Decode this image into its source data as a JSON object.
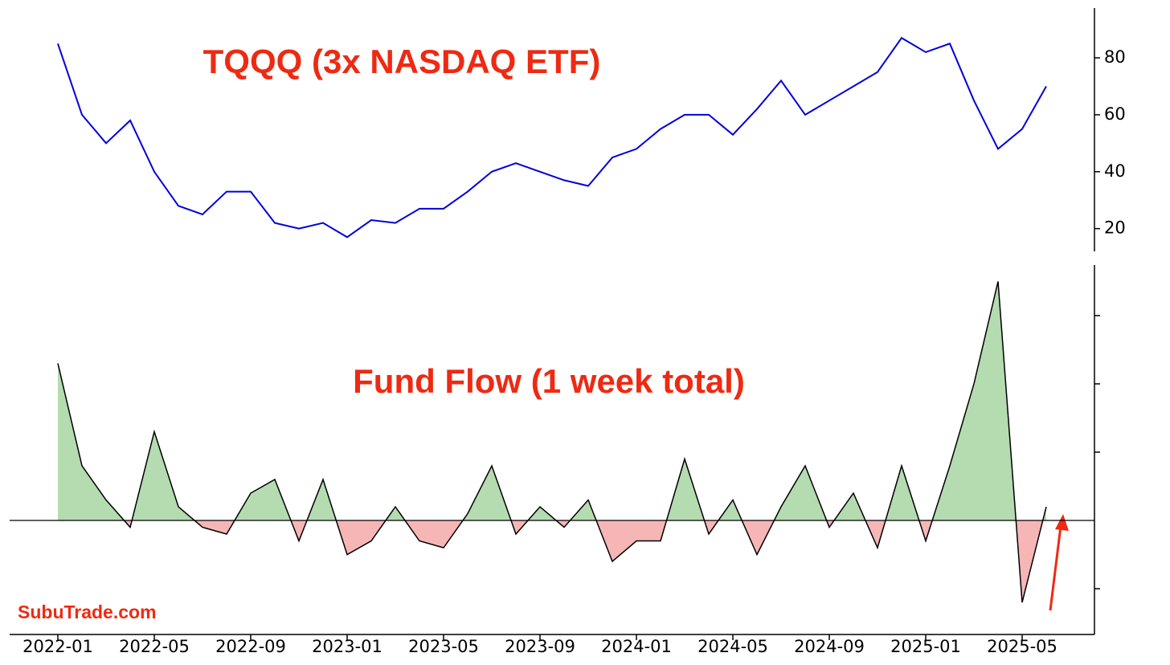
{
  "chart_data": [
    {
      "type": "line",
      "title": "TQQQ (3x NASDAQ ETF)",
      "x": [
        "2022-01",
        "2022-02",
        "2022-03",
        "2022-04",
        "2022-05",
        "2022-06",
        "2022-07",
        "2022-08",
        "2022-09",
        "2022-10",
        "2022-11",
        "2022-12",
        "2023-01",
        "2023-02",
        "2023-03",
        "2023-04",
        "2023-05",
        "2023-06",
        "2023-07",
        "2023-08",
        "2023-09",
        "2023-10",
        "2023-11",
        "2023-12",
        "2024-01",
        "2024-02",
        "2024-03",
        "2024-04",
        "2024-05",
        "2024-06",
        "2024-07",
        "2024-08",
        "2024-09",
        "2024-10",
        "2024-11",
        "2024-12",
        "2025-01",
        "2025-02",
        "2025-03",
        "2025-04",
        "2025-05",
        "2025-06"
      ],
      "series": [
        {
          "color": "#0000dd",
          "values": [
            85,
            60,
            50,
            58,
            40,
            28,
            25,
            33,
            33,
            22,
            20,
            22,
            17,
            23,
            22,
            27,
            27,
            33,
            40,
            43,
            40,
            37,
            35,
            45,
            48,
            55,
            60,
            60,
            53,
            62,
            72,
            60,
            65,
            70,
            75,
            87,
            82,
            85,
            65,
            48,
            55,
            70
          ]
        }
      ],
      "xlim": [
        "2021-11",
        "2025-08"
      ],
      "ylim": [
        12,
        97.5
      ],
      "yticks": [
        20,
        40,
        60,
        80
      ]
    },
    {
      "type": "area",
      "title": "Fund Flow (1 week total)",
      "x": [
        "2022-01",
        "2022-02",
        "2022-03",
        "2022-04",
        "2022-05",
        "2022-06",
        "2022-07",
        "2022-08",
        "2022-09",
        "2022-10",
        "2022-11",
        "2022-12",
        "2023-01",
        "2023-02",
        "2023-03",
        "2023-04",
        "2023-05",
        "2023-06",
        "2023-07",
        "2023-08",
        "2023-09",
        "2023-10",
        "2023-11",
        "2023-12",
        "2024-01",
        "2024-02",
        "2024-03",
        "2024-04",
        "2024-05",
        "2024-06",
        "2024-07",
        "2024-08",
        "2024-09",
        "2024-10",
        "2024-11",
        "2024-12",
        "2025-01",
        "2025-02",
        "2025-03",
        "2025-04",
        "2025-05",
        "2025-06"
      ],
      "series": [
        {
          "color": "#000000",
          "values": [
            2.3,
            0.8,
            0.3,
            -0.1,
            1.3,
            0.2,
            -0.1,
            -0.2,
            0.4,
            0.6,
            -0.3,
            0.6,
            -0.5,
            -0.3,
            0.2,
            -0.3,
            -0.4,
            0.1,
            0.8,
            -0.2,
            0.2,
            -0.1,
            0.3,
            -0.6,
            -0.3,
            -0.3,
            0.9,
            -0.2,
            0.3,
            -0.5,
            0.2,
            0.8,
            -0.1,
            0.4,
            -0.4,
            0.8,
            -0.3,
            0.8,
            2.0,
            3.5,
            -1.2,
            0.2
          ]
        }
      ],
      "positive_color": "#b5dbb1",
      "negative_color": "#f7b6b6",
      "xlim": [
        "2021-11",
        "2025-08"
      ],
      "ylim": [
        -1.67,
        3.74
      ],
      "yticks": [
        -1,
        1,
        2,
        3
      ],
      "xticks": [
        "2022-01",
        "2022-05",
        "2022-09",
        "2023-01",
        "2023-05",
        "2023-09",
        "2024-01",
        "2024-05",
        "2024-09",
        "2025-01",
        "2025-05"
      ]
    }
  ],
  "watermark": "SubuTrade.com"
}
